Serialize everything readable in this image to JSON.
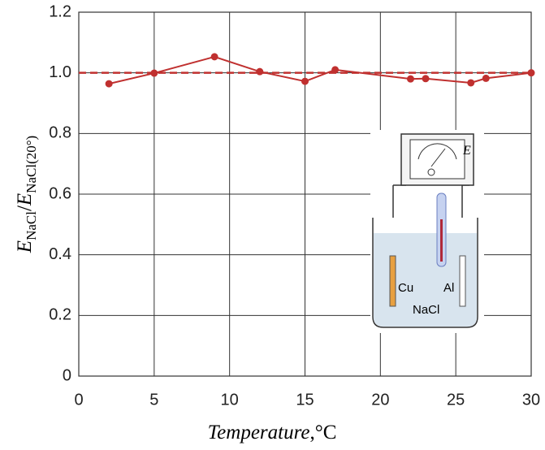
{
  "chart_data": {
    "type": "line",
    "x": [
      2,
      5,
      9,
      12,
      15,
      17,
      22,
      23,
      26,
      27,
      30
    ],
    "values": [
      0.964,
      0.999,
      1.053,
      1.004,
      0.972,
      1.01,
      0.98,
      0.981,
      0.967,
      0.982,
      1.0
    ],
    "color": "#c0302f",
    "reference_line": 1.0,
    "xlim": [
      0,
      30
    ],
    "xticks": [
      0,
      5,
      10,
      15,
      20,
      25,
      30
    ],
    "ylim": [
      0,
      1.2
    ],
    "yticks": [
      0,
      0.2,
      0.4,
      0.6,
      0.8,
      {
        "value": 1.0,
        "label": "1.0"
      },
      1.2
    ],
    "grid": true,
    "xlabel": {
      "name": "Temperature",
      "sep": ",",
      "unit": "°C"
    },
    "ylabel": {
      "main1": "E",
      "sub1": "NaCl",
      "sep": "/",
      "main2": "E",
      "sub2": "NaCl(20°)"
    },
    "inset": {
      "meter_label": "E",
      "electrodes": [
        "Cu",
        "Al"
      ],
      "electrolyte": "NaCl"
    }
  }
}
